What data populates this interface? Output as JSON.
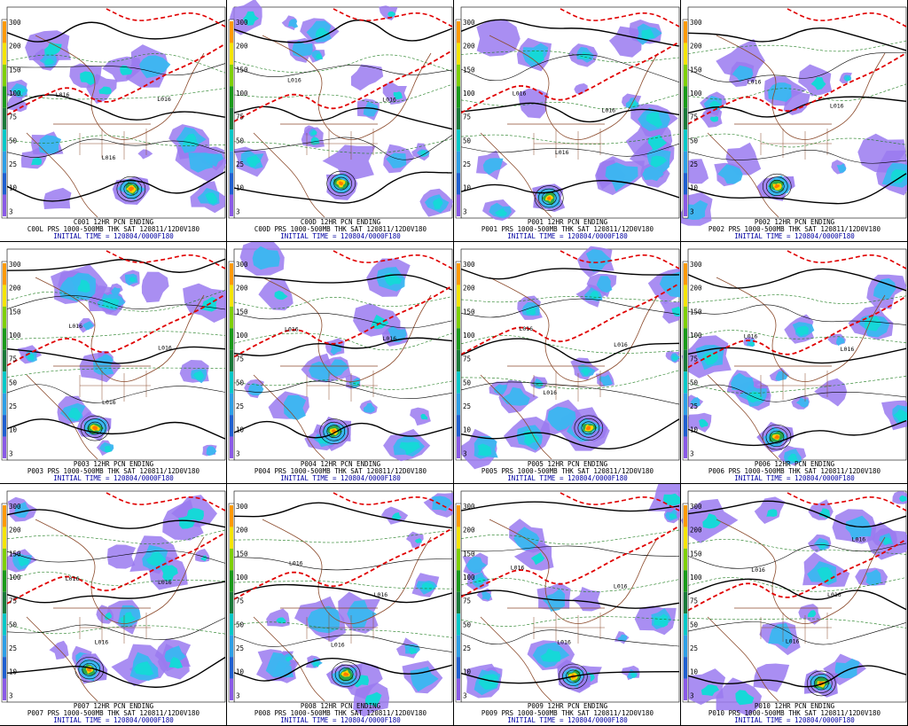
{
  "colorbar": {
    "levels": [
      "300",
      "200",
      "150",
      "100",
      "75",
      "50",
      "25",
      "10",
      "3"
    ],
    "colors": [
      "#ff9a00",
      "#f5e500",
      "#7fd000",
      "#1a9a1a",
      "#1a7a3a",
      "#00c8c8",
      "#2e9fe6",
      "#1f5fd0",
      "#8a5ae6"
    ]
  },
  "map_colors": {
    "geography": "#8b4a2b",
    "thickness_540": "#e00000",
    "isobar": "#000000",
    "temp_contour": "#1a7a1a",
    "precip": [
      "#9a7af0",
      "#3ab7f0",
      "#16d8d8",
      "#2aa84a",
      "#ffd400",
      "#ff7a00",
      "#cc0000"
    ]
  },
  "panels": [
    {
      "id": "C00",
      "pcn_title": "C001 12HR PCN ENDING",
      "prs_line": "C00L PRS 1000-500MB THK SAT 120811/12D0V180",
      "init_line": "INITIAL TIME = 120804/0000F180",
      "lows": [
        {
          "label": "L016"
        },
        {
          "label": "L016"
        },
        {
          "label": "L016"
        }
      ]
    },
    {
      "id": "C000",
      "pcn_title": "C00D 12HR PCN ENDING",
      "prs_line": "C00D PRS 1000-500MB THK SAT 120811/12D0V180",
      "init_line": "INITIAL TIME = 120804/0000F180",
      "lows": [
        {
          "label": "L016"
        },
        {
          "label": "L016"
        }
      ]
    },
    {
      "id": "P001",
      "pcn_title": "P001 12HR PCN ENDING",
      "prs_line": "P001 PRS 1000-500MB THK SAT 120811/12D0V180",
      "init_line": "INITIAL TIME = 120804/0000F180",
      "lows": [
        {
          "label": "L016"
        },
        {
          "label": "L016"
        },
        {
          "label": "L016"
        }
      ]
    },
    {
      "id": "P002",
      "pcn_title": "P002 12HR PCN ENDING",
      "prs_line": "P002 PRS 1000-500MB THK SAT 120811/12D0V180",
      "init_line": "INITIAL TIME = 120804/0000F180",
      "lows": [
        {
          "label": "L016"
        },
        {
          "label": "L016"
        }
      ]
    },
    {
      "id": "P003",
      "pcn_title": "P003 12HR PCN ENDING",
      "prs_line": "P003 PRS 1000-500MB THK SAT 120811/12D0V180",
      "init_line": "INITIAL TIME = 120804/0000F180",
      "lows": [
        {
          "label": "L016"
        },
        {
          "label": "L016"
        },
        {
          "label": "L016"
        }
      ]
    },
    {
      "id": "P004",
      "pcn_title": "P004 12HR PCN ENDING",
      "prs_line": "P004 PRS 1000-500MB THK SAT 120811/12D0V180",
      "init_line": "INITIAL TIME = 120804/0000F180",
      "lows": [
        {
          "label": "L016"
        },
        {
          "label": "L016"
        }
      ]
    },
    {
      "id": "P005",
      "pcn_title": "P005 12HR PCN ENDING",
      "prs_line": "P005 PRS 1000-500MB THK SAT 120811/12D0V180",
      "init_line": "INITIAL TIME = 120804/0000F180",
      "lows": [
        {
          "label": "L016"
        },
        {
          "label": "L016"
        },
        {
          "label": "L016"
        }
      ]
    },
    {
      "id": "P006",
      "pcn_title": "P006 12HR PCN ENDING",
      "prs_line": "P006 PRS 1000-500MB THK SAT 120811/12D0V180",
      "init_line": "INITIAL TIME = 120804/0000F180",
      "lows": [
        {
          "label": "L016"
        },
        {
          "label": "L016"
        }
      ]
    },
    {
      "id": "P007",
      "pcn_title": "P007 12HR PCN ENDING",
      "prs_line": "P007 PRS 1000-500MB THK SAT 120811/12D0V180",
      "init_line": "INITIAL TIME = 120804/0000F180",
      "lows": [
        {
          "label": "L016"
        },
        {
          "label": "L016"
        },
        {
          "label": "L016"
        }
      ]
    },
    {
      "id": "P008",
      "pcn_title": "P008 12HR PCN ENDING",
      "prs_line": "P008 PRS 1000-500MB THK SAT 120811/12D0V180",
      "init_line": "INITIAL TIME = 120804/0000F180",
      "lows": [
        {
          "label": "L016"
        },
        {
          "label": "L016"
        },
        {
          "label": "L016"
        }
      ]
    },
    {
      "id": "P009",
      "pcn_title": "P009 12HR PCN ENDING",
      "prs_line": "P009 PRS 1000-500MB THK SAT 120811/12D0V180",
      "init_line": "INITIAL TIME = 120804/0000F180",
      "lows": [
        {
          "label": "L016"
        },
        {
          "label": "L016"
        },
        {
          "label": "L016"
        }
      ]
    },
    {
      "id": "P010",
      "pcn_title": "P010 12HR PCN ENDING",
      "prs_line": "P010 PRS 1000-500MB THK SAT 120811/12D0V180",
      "init_line": "INITIAL TIME = 120804/0000F180",
      "lows": [
        {
          "label": "L016"
        },
        {
          "label": "L016"
        },
        {
          "label": "L016"
        },
        {
          "label": "L016"
        }
      ]
    }
  ]
}
